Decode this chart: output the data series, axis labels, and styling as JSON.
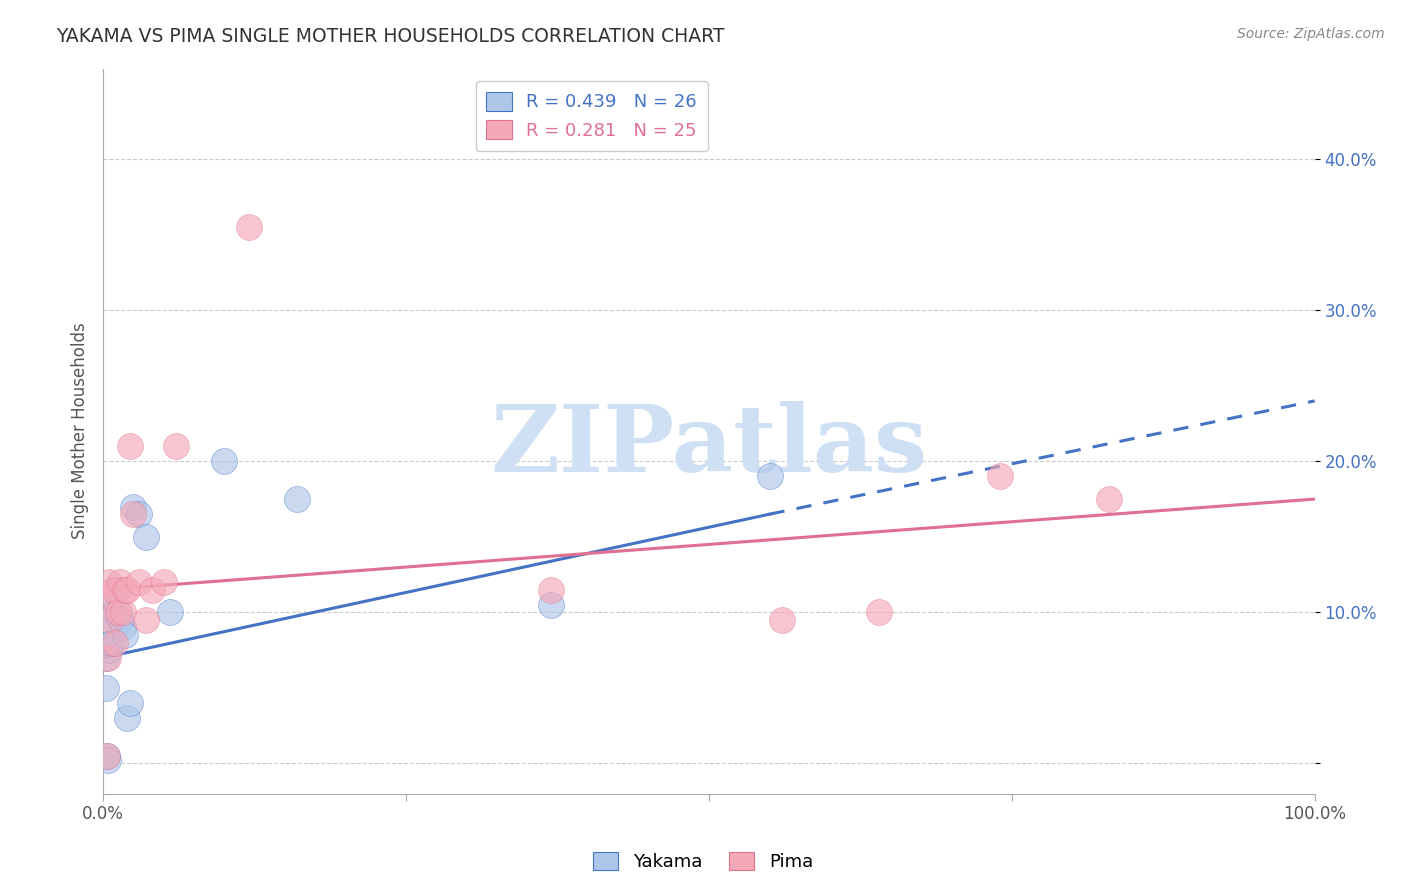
{
  "title": "YAKAMA VS PIMA SINGLE MOTHER HOUSEHOLDS CORRELATION CHART",
  "source": "Source: ZipAtlas.com",
  "ylabel": "Single Mother Households",
  "xlim": [
    0.0,
    1.0
  ],
  "ylim": [
    -0.02,
    0.46
  ],
  "xtick_vals": [
    0.0,
    0.25,
    0.5,
    0.75,
    1.0
  ],
  "xtick_labels": [
    "0.0%",
    "",
    "",
    "",
    "100.0%"
  ],
  "ytick_vals": [
    0.0,
    0.1,
    0.2,
    0.3,
    0.4
  ],
  "ytick_labels": [
    "",
    "10.0%",
    "20.0%",
    "30.0%",
    "40.0%"
  ],
  "legend_r_yakama": "R = 0.439",
  "legend_n_yakama": "N = 26",
  "legend_r_pima": "R = 0.281",
  "legend_n_pima": "N = 25",
  "yakama_color": "#aec6e8",
  "pima_color": "#f4a8b8",
  "trend_yakama_color": "#4472c4",
  "trend_pima_color": "#e07090",
  "watermark_text": "ZIPatlas",
  "watermark_color": "#d0e0f4",
  "yakama_x": [
    0.002,
    0.002,
    0.003,
    0.004,
    0.005,
    0.006,
    0.007,
    0.008,
    0.009,
    0.01,
    0.011,
    0.012,
    0.013,
    0.014,
    0.016,
    0.018,
    0.02,
    0.022,
    0.025,
    0.03,
    0.035,
    0.055,
    0.1,
    0.16,
    0.37,
    0.55
  ],
  "yakama_y": [
    0.07,
    0.05,
    0.005,
    0.002,
    0.075,
    0.08,
    0.08,
    0.1,
    0.095,
    0.1,
    0.115,
    0.115,
    0.1,
    0.095,
    0.09,
    0.085,
    0.03,
    0.04,
    0.17,
    0.165,
    0.15,
    0.1,
    0.2,
    0.175,
    0.105,
    0.19
  ],
  "pima_x": [
    0.003,
    0.004,
    0.005,
    0.006,
    0.007,
    0.008,
    0.01,
    0.012,
    0.014,
    0.016,
    0.018,
    0.02,
    0.022,
    0.025,
    0.03,
    0.035,
    0.04,
    0.05,
    0.06,
    0.12,
    0.37,
    0.56,
    0.64,
    0.74,
    0.83
  ],
  "pima_y": [
    0.005,
    0.07,
    0.12,
    0.095,
    0.11,
    0.115,
    0.08,
    0.1,
    0.12,
    0.1,
    0.115,
    0.115,
    0.21,
    0.165,
    0.12,
    0.095,
    0.115,
    0.12,
    0.21,
    0.355,
    0.115,
    0.095,
    0.1,
    0.19,
    0.175
  ],
  "trend_yakama_x0": 0.0,
  "trend_yakama_y0": 0.07,
  "trend_yakama_x1": 0.55,
  "trend_yakama_y1": 0.165,
  "trend_yakama_dash_x1": 1.0,
  "trend_yakama_dash_y1": 0.24,
  "trend_pima_x0": 0.0,
  "trend_pima_y0": 0.115,
  "trend_pima_x1": 1.0,
  "trend_pima_y1": 0.175
}
